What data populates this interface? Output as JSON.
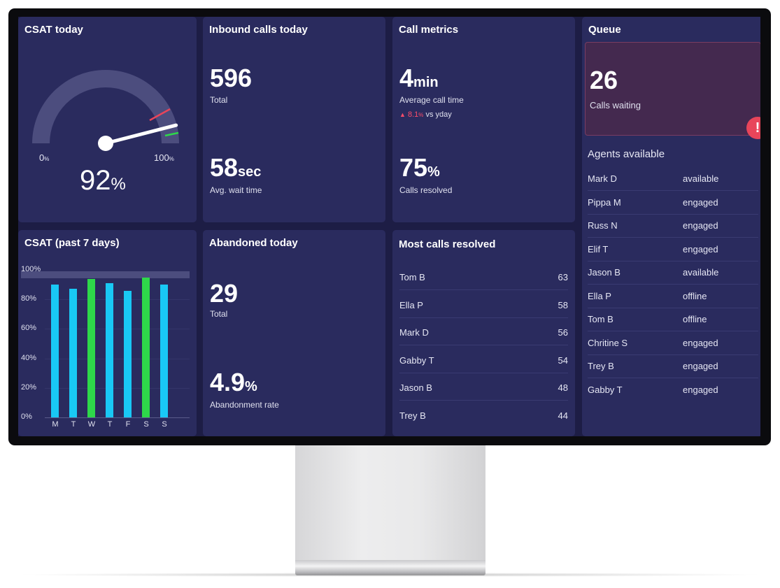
{
  "csat_today": {
    "title": "CSAT today",
    "min_label": "0",
    "max_label": "100",
    "min_unit": "%",
    "max_unit": "%",
    "value": "92",
    "unit": "%",
    "gauge_fraction": 0.92
  },
  "inbound": {
    "title": "Inbound calls today",
    "total_value": "596",
    "total_label": "Total",
    "wait_value": "58",
    "wait_unit": "sec",
    "wait_label": "Avg. wait time"
  },
  "call_metrics": {
    "title": "Call metrics",
    "avg_value": "4",
    "avg_unit": "min",
    "avg_label": "Average call time",
    "delta_value": "8.1",
    "delta_unit": "%",
    "delta_text": "vs yday",
    "resolved_value": "75",
    "resolved_unit": "%",
    "resolved_label": "Calls resolved"
  },
  "queue": {
    "title": "Queue",
    "waiting_value": "26",
    "waiting_label": "Calls waiting",
    "alert_icon": "exclamation-icon",
    "agents_title": "Agents available",
    "agents": [
      {
        "name": "Mark D",
        "status": "available"
      },
      {
        "name": "Pippa M",
        "status": "engaged"
      },
      {
        "name": "Russ N",
        "status": "engaged"
      },
      {
        "name": "Elif T",
        "status": "engaged"
      },
      {
        "name": "Jason B",
        "status": "available"
      },
      {
        "name": "Ella P",
        "status": "offline"
      },
      {
        "name": "Tom B",
        "status": "offline"
      },
      {
        "name": "Chritine S",
        "status": "engaged"
      },
      {
        "name": "Trey B",
        "status": "engaged"
      },
      {
        "name": "Gabby T",
        "status": "engaged"
      }
    ]
  },
  "csat7": {
    "title": "CSAT (past 7 days)",
    "y_ticks": [
      "100%",
      "80%",
      "60%",
      "40%",
      "20%",
      "0%"
    ]
  },
  "abandoned": {
    "title": "Abandoned today",
    "total_value": "29",
    "total_label": "Total",
    "rate_value": "4.9",
    "rate_unit": "%",
    "rate_label": "Abandonment rate"
  },
  "most_resolved": {
    "title": "Most calls resolved",
    "rows": [
      {
        "name": "Tom B",
        "value": "63"
      },
      {
        "name": "Ella P",
        "value": "58"
      },
      {
        "name": "Mark D",
        "value": "56"
      },
      {
        "name": "Gabby T",
        "value": "54"
      },
      {
        "name": "Jason B",
        "value": "48"
      },
      {
        "name": "Trey B",
        "value": "44"
      }
    ]
  },
  "colors": {
    "bar_blue": "#19c8f5",
    "bar_green": "#2ed84a",
    "alert_red": "#e8455a",
    "negative_red": "#ff4d6a"
  },
  "chart_data": {
    "type": "bar",
    "title": "CSAT (past 7 days)",
    "categories": [
      "M",
      "T",
      "W",
      "T",
      "F",
      "S",
      "S"
    ],
    "values": [
      90,
      87,
      94,
      91,
      86,
      95,
      90
    ],
    "highlight": [
      false,
      false,
      true,
      false,
      false,
      true,
      false
    ],
    "ylim": [
      0,
      100
    ],
    "yticks": [
      "100%",
      "80%",
      "60%",
      "40%",
      "20%",
      "0%"
    ]
  }
}
